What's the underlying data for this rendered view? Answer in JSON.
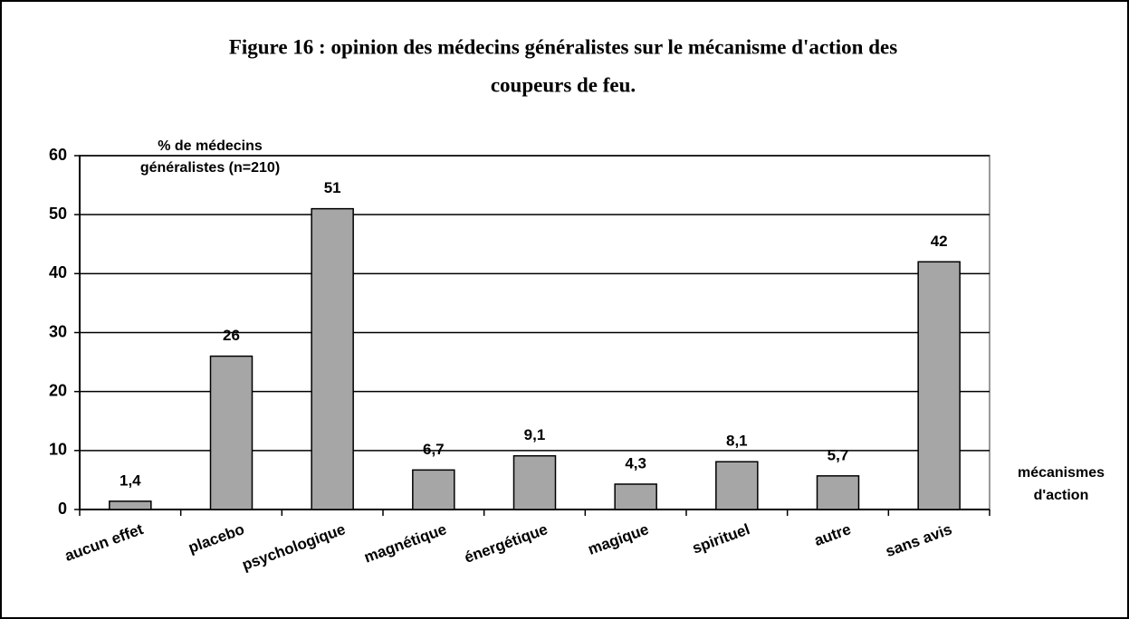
{
  "chart_data": {
    "type": "bar",
    "title": [
      "Figure 16 : opinion des médecins généralistes sur le mécanisme d'action des",
      "coupeurs de feu."
    ],
    "y_label": [
      "% de médecins",
      "généralistes (n=210)"
    ],
    "x_label": [
      "mécanismes",
      "d'action"
    ],
    "categories": [
      "aucun effet",
      "placebo",
      "psychologique",
      "magnétique",
      "énergétique",
      "magique",
      "spirituel",
      "autre",
      "sans avis"
    ],
    "values": [
      1.4,
      26,
      51,
      6.7,
      9.1,
      4.3,
      8.1,
      5.7,
      42
    ],
    "value_labels": [
      "1,4",
      "26",
      "51",
      "6,7",
      "9,1",
      "4,3",
      "8,1",
      "5,7",
      "42"
    ],
    "color": "#a6a6a6",
    "ylim": [
      0,
      60
    ],
    "yticks": [
      0,
      10,
      20,
      30,
      40,
      50,
      60
    ],
    "grid": true
  }
}
